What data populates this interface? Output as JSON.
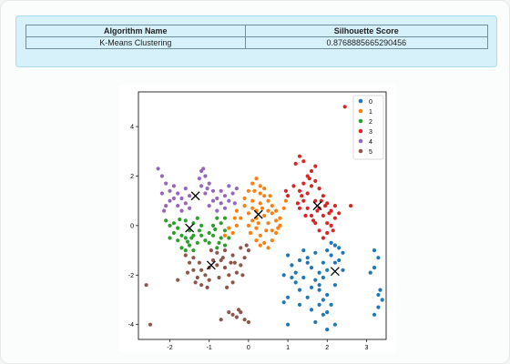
{
  "result_table": {
    "headers": [
      "Algorithm Name",
      "Silhouette Score"
    ],
    "rows": [
      [
        "K-Means Clustering",
        "0.8768885665290456"
      ]
    ]
  },
  "chart_data": {
    "type": "scatter",
    "title": "",
    "xlabel": "",
    "ylabel": "",
    "xlim": [
      -2.8,
      3.5
    ],
    "ylim": [
      -4.6,
      5.4
    ],
    "xticks": [
      "-2",
      "-1",
      "0",
      "1",
      "2",
      "3"
    ],
    "yticks": [
      "-4",
      "-2",
      "0",
      "2",
      "4"
    ],
    "legend_position": "top-right",
    "series": [
      {
        "name": "0",
        "color": "#1f77b4",
        "points": [
          [
            1.0,
            -1.2
          ],
          [
            1.1,
            -1.6
          ],
          [
            1.2,
            -1.9
          ],
          [
            1.3,
            -1.4
          ],
          [
            1.4,
            -1.0
          ],
          [
            1.5,
            -1.3
          ],
          [
            1.6,
            -1.7
          ],
          [
            1.7,
            -2.2
          ],
          [
            1.8,
            -2.6
          ],
          [
            1.9,
            -3.0
          ],
          [
            1.6,
            -3.4
          ],
          [
            1.7,
            -3.9
          ],
          [
            1.9,
            -3.6
          ],
          [
            2.1,
            -3.2
          ],
          [
            2.0,
            -2.8
          ],
          [
            2.2,
            -2.4
          ],
          [
            2.2,
            -1.5
          ],
          [
            2.1,
            -1.2
          ],
          [
            2.3,
            -0.9
          ],
          [
            2.4,
            -1.1
          ],
          [
            2.2,
            -0.8
          ],
          [
            2.0,
            -1.0
          ],
          [
            1.9,
            -1.5
          ],
          [
            1.8,
            -1.9
          ],
          [
            1.8,
            -2.4
          ],
          [
            1.6,
            -2.5
          ],
          [
            1.4,
            -2.1
          ],
          [
            1.2,
            -2.3
          ],
          [
            1.3,
            -2.6
          ],
          [
            1.1,
            -2.1
          ],
          [
            0.9,
            -2.0
          ],
          [
            1.0,
            -2.9
          ],
          [
            1.3,
            -3.2
          ],
          [
            1.5,
            -2.9
          ],
          [
            1.9,
            -2.1
          ],
          [
            2.0,
            -1.8
          ],
          [
            2.4,
            -1.8
          ],
          [
            2.3,
            -1.4
          ],
          [
            2.1,
            -0.7
          ],
          [
            1.7,
            -1.1
          ],
          [
            3.2,
            -1.0
          ],
          [
            3.3,
            -1.3
          ],
          [
            3.2,
            -1.7
          ],
          [
            3.1,
            -1.9
          ],
          [
            3.3,
            -2.8
          ],
          [
            3.4,
            -3.0
          ],
          [
            3.3,
            -3.3
          ],
          [
            3.2,
            -3.6
          ],
          [
            3.35,
            -2.6
          ],
          [
            2.0,
            -3.5
          ],
          [
            1.8,
            -3.2
          ],
          [
            2.2,
            -4.0
          ],
          [
            1.0,
            -4.0
          ],
          [
            0.9,
            -3.1
          ],
          [
            2.0,
            -4.2
          ],
          [
            1.5,
            -1.5
          ]
        ]
      },
      {
        "name": "1",
        "color": "#ff7f0e",
        "points": [
          [
            -0.1,
            1.1
          ],
          [
            0.0,
            1.4
          ],
          [
            0.1,
            1.7
          ],
          [
            0.2,
            1.9
          ],
          [
            0.3,
            1.6
          ],
          [
            0.4,
            1.2
          ],
          [
            0.5,
            1.0
          ],
          [
            0.6,
            0.8
          ],
          [
            0.7,
            0.6
          ],
          [
            0.8,
            0.3
          ],
          [
            0.8,
            0.0
          ],
          [
            0.7,
            -0.3
          ],
          [
            0.6,
            -0.6
          ],
          [
            0.5,
            -0.9
          ],
          [
            0.4,
            -0.7
          ],
          [
            0.3,
            -0.4
          ],
          [
            0.2,
            -0.1
          ],
          [
            0.1,
            0.2
          ],
          [
            0.0,
            0.5
          ],
          [
            -0.1,
            0.8
          ],
          [
            0.2,
            0.6
          ],
          [
            0.3,
            0.9
          ],
          [
            0.4,
            0.4
          ],
          [
            0.5,
            0.1
          ],
          [
            0.6,
            -0.2
          ],
          [
            0.3,
            1.3
          ],
          [
            0.4,
            1.5
          ],
          [
            0.1,
            1.0
          ],
          [
            0.2,
            0.3
          ],
          [
            0.0,
            0.0
          ],
          [
            -0.2,
            0.3
          ],
          [
            -0.3,
            0.0
          ],
          [
            -0.4,
            -0.3
          ],
          [
            -0.3,
            0.6
          ],
          [
            0.5,
            0.6
          ],
          [
            0.7,
            0.2
          ],
          [
            0.6,
            0.5
          ],
          [
            0.3,
            -0.8
          ],
          [
            0.2,
            -0.6
          ],
          [
            0.45,
            -0.2
          ],
          [
            0.25,
            0.1
          ],
          [
            0.35,
            0.7
          ],
          [
            0.15,
            1.4
          ],
          [
            0.55,
            1.2
          ],
          [
            0.05,
            -0.3
          ],
          [
            -0.35,
            0.3
          ],
          [
            0.75,
            -0.1
          ],
          [
            0.1,
            0.7
          ],
          [
            0.95,
            1.0
          ],
          [
            0.9,
            0.7
          ],
          [
            -0.6,
            -0.4
          ],
          [
            -0.5,
            -0.1
          ]
        ]
      },
      {
        "name": "2",
        "color": "#2ca02c",
        "points": [
          [
            -2.1,
            0.2
          ],
          [
            -2.0,
            0.0
          ],
          [
            -1.9,
            -0.3
          ],
          [
            -1.8,
            -0.6
          ],
          [
            -1.7,
            -0.9
          ],
          [
            -1.6,
            -0.5
          ],
          [
            -1.5,
            -0.2
          ],
          [
            -1.4,
            0.1
          ],
          [
            -1.3,
            0.3
          ],
          [
            -1.2,
            0.0
          ],
          [
            -1.2,
            -0.4
          ],
          [
            -1.3,
            -0.7
          ],
          [
            -1.5,
            -0.8
          ],
          [
            -1.7,
            -0.4
          ],
          [
            -1.9,
            0.1
          ],
          [
            -1.6,
            0.2
          ],
          [
            -1.4,
            -0.4
          ],
          [
            -1.8,
            -0.1
          ],
          [
            -2.0,
            -0.5
          ],
          [
            -1.6,
            -1.0
          ],
          [
            -1.4,
            -1.0
          ],
          [
            -1.1,
            -0.6
          ],
          [
            -1.0,
            -0.3
          ],
          [
            -0.9,
            0.0
          ],
          [
            -0.8,
            0.3
          ],
          [
            -0.7,
            0.1
          ],
          [
            -0.6,
            -0.2
          ],
          [
            -0.5,
            -0.5
          ],
          [
            -0.6,
            -0.8
          ],
          [
            -0.8,
            -0.9
          ],
          [
            -1.0,
            -0.7
          ],
          [
            -0.9,
            -0.4
          ],
          [
            -0.7,
            -0.5
          ],
          [
            -0.6,
            0.3
          ],
          [
            -0.85,
            -0.15
          ],
          [
            -0.75,
            -0.7
          ],
          [
            -1.55,
            -0.65
          ],
          [
            -1.75,
            0.25
          ],
          [
            -1.25,
            -0.2
          ],
          [
            -1.45,
            -0.5
          ]
        ]
      },
      {
        "name": "3",
        "color": "#d62728",
        "points": [
          [
            1.3,
            1.4
          ],
          [
            1.4,
            1.7
          ],
          [
            1.5,
            2.0
          ],
          [
            1.6,
            2.2
          ],
          [
            1.7,
            1.8
          ],
          [
            1.8,
            1.5
          ],
          [
            1.9,
            1.2
          ],
          [
            2.0,
            0.9
          ],
          [
            2.1,
            0.6
          ],
          [
            2.2,
            0.3
          ],
          [
            2.1,
            0.0
          ],
          [
            2.0,
            -0.3
          ],
          [
            1.9,
            -0.5
          ],
          [
            1.8,
            -0.2
          ],
          [
            1.7,
            0.1
          ],
          [
            1.6,
            0.4
          ],
          [
            1.5,
            0.7
          ],
          [
            1.4,
            1.0
          ],
          [
            1.3,
            0.7
          ],
          [
            1.5,
            1.3
          ],
          [
            1.7,
            1.0
          ],
          [
            1.8,
            0.7
          ],
          [
            1.9,
            0.4
          ],
          [
            2.0,
            0.1
          ],
          [
            1.6,
            1.6
          ],
          [
            1.55,
            1.9
          ],
          [
            1.35,
            1.2
          ],
          [
            1.45,
            0.4
          ],
          [
            1.25,
            0.9
          ],
          [
            2.2,
            0.8
          ],
          [
            2.3,
            0.5
          ],
          [
            1.75,
            0.6
          ],
          [
            1.65,
            0.2
          ],
          [
            1.85,
            1.0
          ],
          [
            2.05,
            0.5
          ],
          [
            1.95,
            0.8
          ],
          [
            1.2,
            2.5
          ],
          [
            1.3,
            2.8
          ],
          [
            1.4,
            2.6
          ],
          [
            1.0,
            1.2
          ],
          [
            0.95,
            1.4
          ],
          [
            2.6,
            0.8
          ],
          [
            2.45,
            4.8
          ],
          [
            1.15,
            1.6
          ],
          [
            1.7,
            2.4
          ],
          [
            2.15,
            -0.2
          ]
        ]
      },
      {
        "name": "4",
        "color": "#9467bd",
        "points": [
          [
            -2.3,
            2.3
          ],
          [
            -2.2,
            2.0
          ],
          [
            -2.1,
            1.7
          ],
          [
            -2.0,
            1.4
          ],
          [
            -1.9,
            1.1
          ],
          [
            -1.8,
            0.8
          ],
          [
            -1.7,
            0.6
          ],
          [
            -1.6,
            0.9
          ],
          [
            -1.5,
            1.2
          ],
          [
            -1.6,
            1.5
          ],
          [
            -1.8,
            1.3
          ],
          [
            -2.0,
            1.0
          ],
          [
            -2.1,
            0.8
          ],
          [
            -1.9,
            1.6
          ],
          [
            -2.2,
            1.3
          ],
          [
            -1.7,
            1.1
          ],
          [
            -1.5,
            0.7
          ],
          [
            -2.15,
            0.6
          ],
          [
            -1.2,
            2.2
          ],
          [
            -1.1,
            2.0
          ],
          [
            -1.0,
            1.7
          ],
          [
            -0.9,
            1.4
          ],
          [
            -0.8,
            1.1
          ],
          [
            -0.7,
            0.9
          ],
          [
            -0.6,
            0.7
          ],
          [
            -0.5,
            1.0
          ],
          [
            -0.4,
            1.3
          ],
          [
            -0.5,
            1.6
          ],
          [
            -0.7,
            1.4
          ],
          [
            -0.9,
            1.0
          ],
          [
            -1.1,
            1.3
          ],
          [
            -1.2,
            1.6
          ],
          [
            -1.0,
            0.8
          ],
          [
            -0.8,
            0.6
          ],
          [
            -0.6,
            1.2
          ],
          [
            -1.15,
            2.3
          ],
          [
            -1.05,
            1.5
          ],
          [
            -0.3,
            1.5
          ],
          [
            -0.35,
            0.9
          ],
          [
            -1.25,
            1.9
          ]
        ]
      },
      {
        "name": "5",
        "color": "#8c564b",
        "points": [
          [
            -1.6,
            -1.2
          ],
          [
            -1.5,
            -1.5
          ],
          [
            -1.4,
            -1.8
          ],
          [
            -1.3,
            -2.1
          ],
          [
            -1.2,
            -2.4
          ],
          [
            -1.1,
            -2.0
          ],
          [
            -1.0,
            -1.7
          ],
          [
            -0.9,
            -1.4
          ],
          [
            -0.8,
            -1.1
          ],
          [
            -0.7,
            -1.4
          ],
          [
            -0.6,
            -1.7
          ],
          [
            -0.5,
            -2.0
          ],
          [
            -0.4,
            -2.3
          ],
          [
            -0.3,
            -1.9
          ],
          [
            -0.2,
            -1.6
          ],
          [
            -0.1,
            -1.3
          ],
          [
            0.0,
            -1.0
          ],
          [
            -0.2,
            -0.9
          ],
          [
            -0.4,
            -1.2
          ],
          [
            -0.6,
            -1.0
          ],
          [
            -0.8,
            -1.6
          ],
          [
            -1.0,
            -2.2
          ],
          [
            -1.2,
            -1.8
          ],
          [
            -1.4,
            -1.3
          ],
          [
            -1.55,
            -1.9
          ],
          [
            -1.35,
            -2.3
          ],
          [
            -0.75,
            -2.1
          ],
          [
            -0.55,
            -2.5
          ],
          [
            -0.35,
            -1.5
          ],
          [
            -0.15,
            -2.0
          ],
          [
            -0.45,
            -1.5
          ],
          [
            -0.65,
            -1.3
          ],
          [
            -0.95,
            -1.0
          ],
          [
            -1.25,
            -1.5
          ],
          [
            -1.05,
            -2.5
          ],
          [
            -0.5,
            -3.5
          ],
          [
            -0.4,
            -3.6
          ],
          [
            -0.3,
            -3.7
          ],
          [
            -0.2,
            -3.5
          ],
          [
            -0.1,
            -3.8
          ],
          [
            0.0,
            -3.9
          ],
          [
            -0.25,
            -3.4
          ],
          [
            -0.7,
            -3.8
          ],
          [
            -1.8,
            -2.2
          ],
          [
            -2.6,
            -2.4
          ],
          [
            -2.5,
            -4.0
          ],
          [
            -0.05,
            -0.8
          ]
        ]
      }
    ],
    "centroids": [
      [
        2.2,
        -1.85
      ],
      [
        0.25,
        0.45
      ],
      [
        -1.5,
        -0.1
      ],
      [
        1.75,
        0.8
      ],
      [
        -1.35,
        1.2
      ],
      [
        -0.95,
        -1.6
      ]
    ]
  }
}
